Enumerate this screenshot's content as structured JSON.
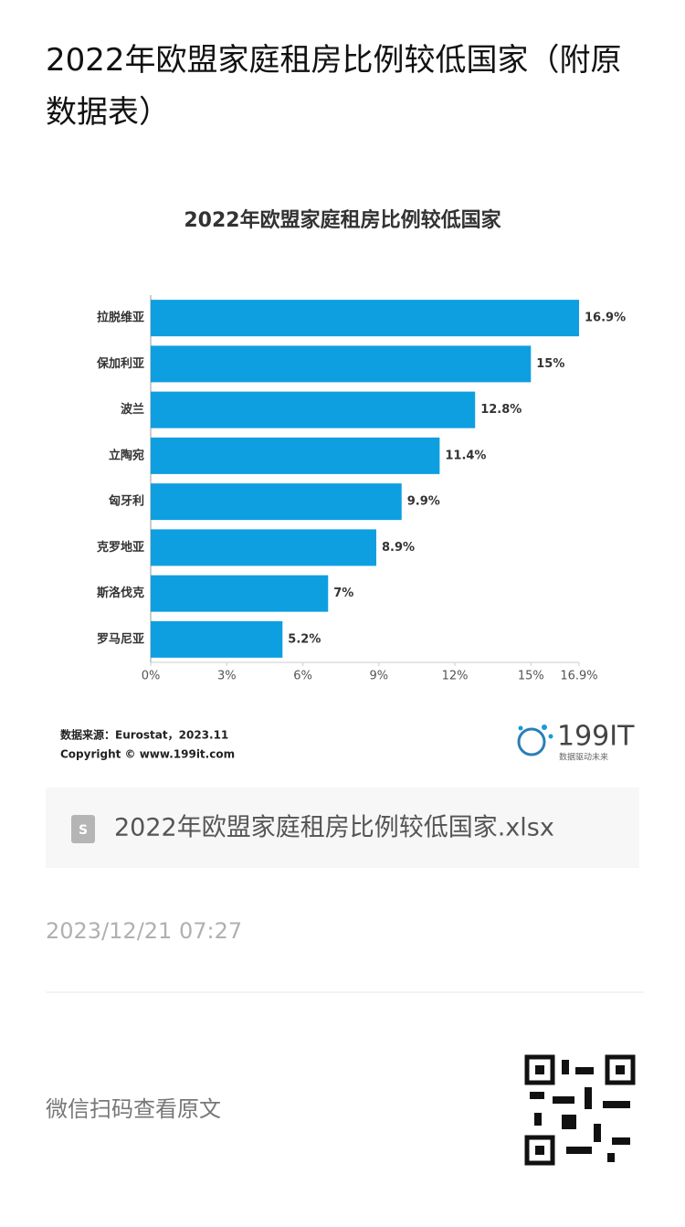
{
  "header": {
    "title": "2022年欧盟家庭租房比例较低国家（附原数据表）"
  },
  "chart_data": {
    "type": "hbar",
    "title": "2022年欧盟家庭租房比例较低国家",
    "categories": [
      "拉脱维亚",
      "保加利亚",
      "波兰",
      "立陶宛",
      "匈牙利",
      "克罗地亚",
      "斯洛伐克",
      "罗马尼亚"
    ],
    "values": [
      16.9,
      15,
      12.8,
      11.4,
      9.9,
      8.9,
      7,
      5.2
    ],
    "value_labels": [
      "16.9%",
      "15%",
      "12.8%",
      "11.4%",
      "9.9%",
      "8.9%",
      "7%",
      "5.2%"
    ],
    "color": "#0e9fe0",
    "xlim": [
      0,
      16.9
    ],
    "xticks": [
      {
        "value": 0,
        "label": "0%"
      },
      {
        "value": 3,
        "label": "3%"
      },
      {
        "value": 6,
        "label": "6%"
      },
      {
        "value": 9,
        "label": "9%"
      },
      {
        "value": 12,
        "label": "12%"
      },
      {
        "value": 15,
        "label": "15%"
      },
      {
        "value": 16.9,
        "label": "16.9%"
      }
    ],
    "grid": false,
    "source": "数据来源：Eurostat，2023.11",
    "copyright": "Copyright © www.199it.com"
  },
  "logo": {
    "text": "199IT",
    "slogan": "数据驱动未来"
  },
  "attachment": {
    "filename": "2022年欧盟家庭租房比例较低国家.xlsx"
  },
  "meta": {
    "date": "2023/12/21 07:27"
  },
  "footer": {
    "qr_text": "微信扫码查看原文"
  }
}
